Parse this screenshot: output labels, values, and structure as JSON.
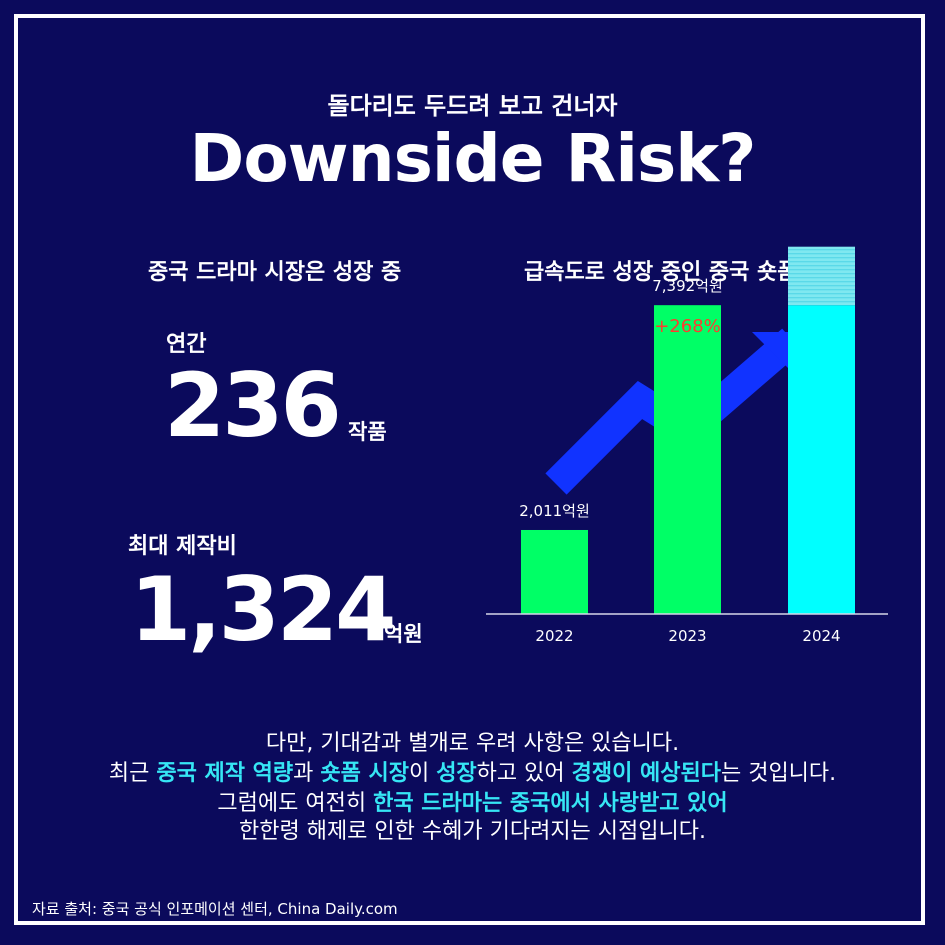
{
  "header": {
    "subtitle": "돌다리도 두드려 보고 건너자",
    "title": "Downside Risk?"
  },
  "left": {
    "heading": "중국 드라마 시장은 성장 중",
    "stat1": {
      "label": "연간",
      "value": "236",
      "unit": "작품"
    },
    "stat2": {
      "label": "최대 제작비",
      "value": "1,324",
      "unit": "억원"
    }
  },
  "chart_data": {
    "type": "bar",
    "title": "급속도로 성장 중인 중국 숏폼 시장",
    "categories": [
      "2022",
      "2023",
      "2024"
    ],
    "values": [
      2011,
      7392,
      7392
    ],
    "projected_extra": [
      0,
      0,
      1400
    ],
    "value_labels": [
      "2,011억원",
      "7,392억원",
      ""
    ],
    "annotation": "+268%",
    "colors": {
      "bar_2022": "#00ff66",
      "bar_2023": "#00ff66",
      "bar_2024": "#00ffff",
      "arrow": "#1133ff",
      "annotation": "#ff3b30"
    },
    "ylim": [
      0,
      9000
    ],
    "grid": false
  },
  "body": {
    "line1": "다만, 기대감과 별개로 우려 사항은 있습니다.",
    "line2": [
      {
        "text": "최근 ",
        "hl": false
      },
      {
        "text": "중국 제작 역량",
        "hl": true
      },
      {
        "text": "과 ",
        "hl": false
      },
      {
        "text": "숏폼 시장",
        "hl": true
      },
      {
        "text": "이 ",
        "hl": false
      },
      {
        "text": "성장",
        "hl": true
      },
      {
        "text": "하고 있어 ",
        "hl": false
      },
      {
        "text": "경쟁이 예상된다",
        "hl": true
      },
      {
        "text": "는 것입니다.",
        "hl": false
      }
    ],
    "line3": [
      {
        "text": "그럼에도 여전히 ",
        "hl": false
      },
      {
        "text": "한국 드라마는 중국에서 사랑받고 있어",
        "hl": true
      }
    ],
    "line4": "한한령 해제로 인한 수혜가 기다려지는 시점입니다."
  },
  "source": "자료 출처: 중국 공식 인포메이션 센터, China Daily.com"
}
